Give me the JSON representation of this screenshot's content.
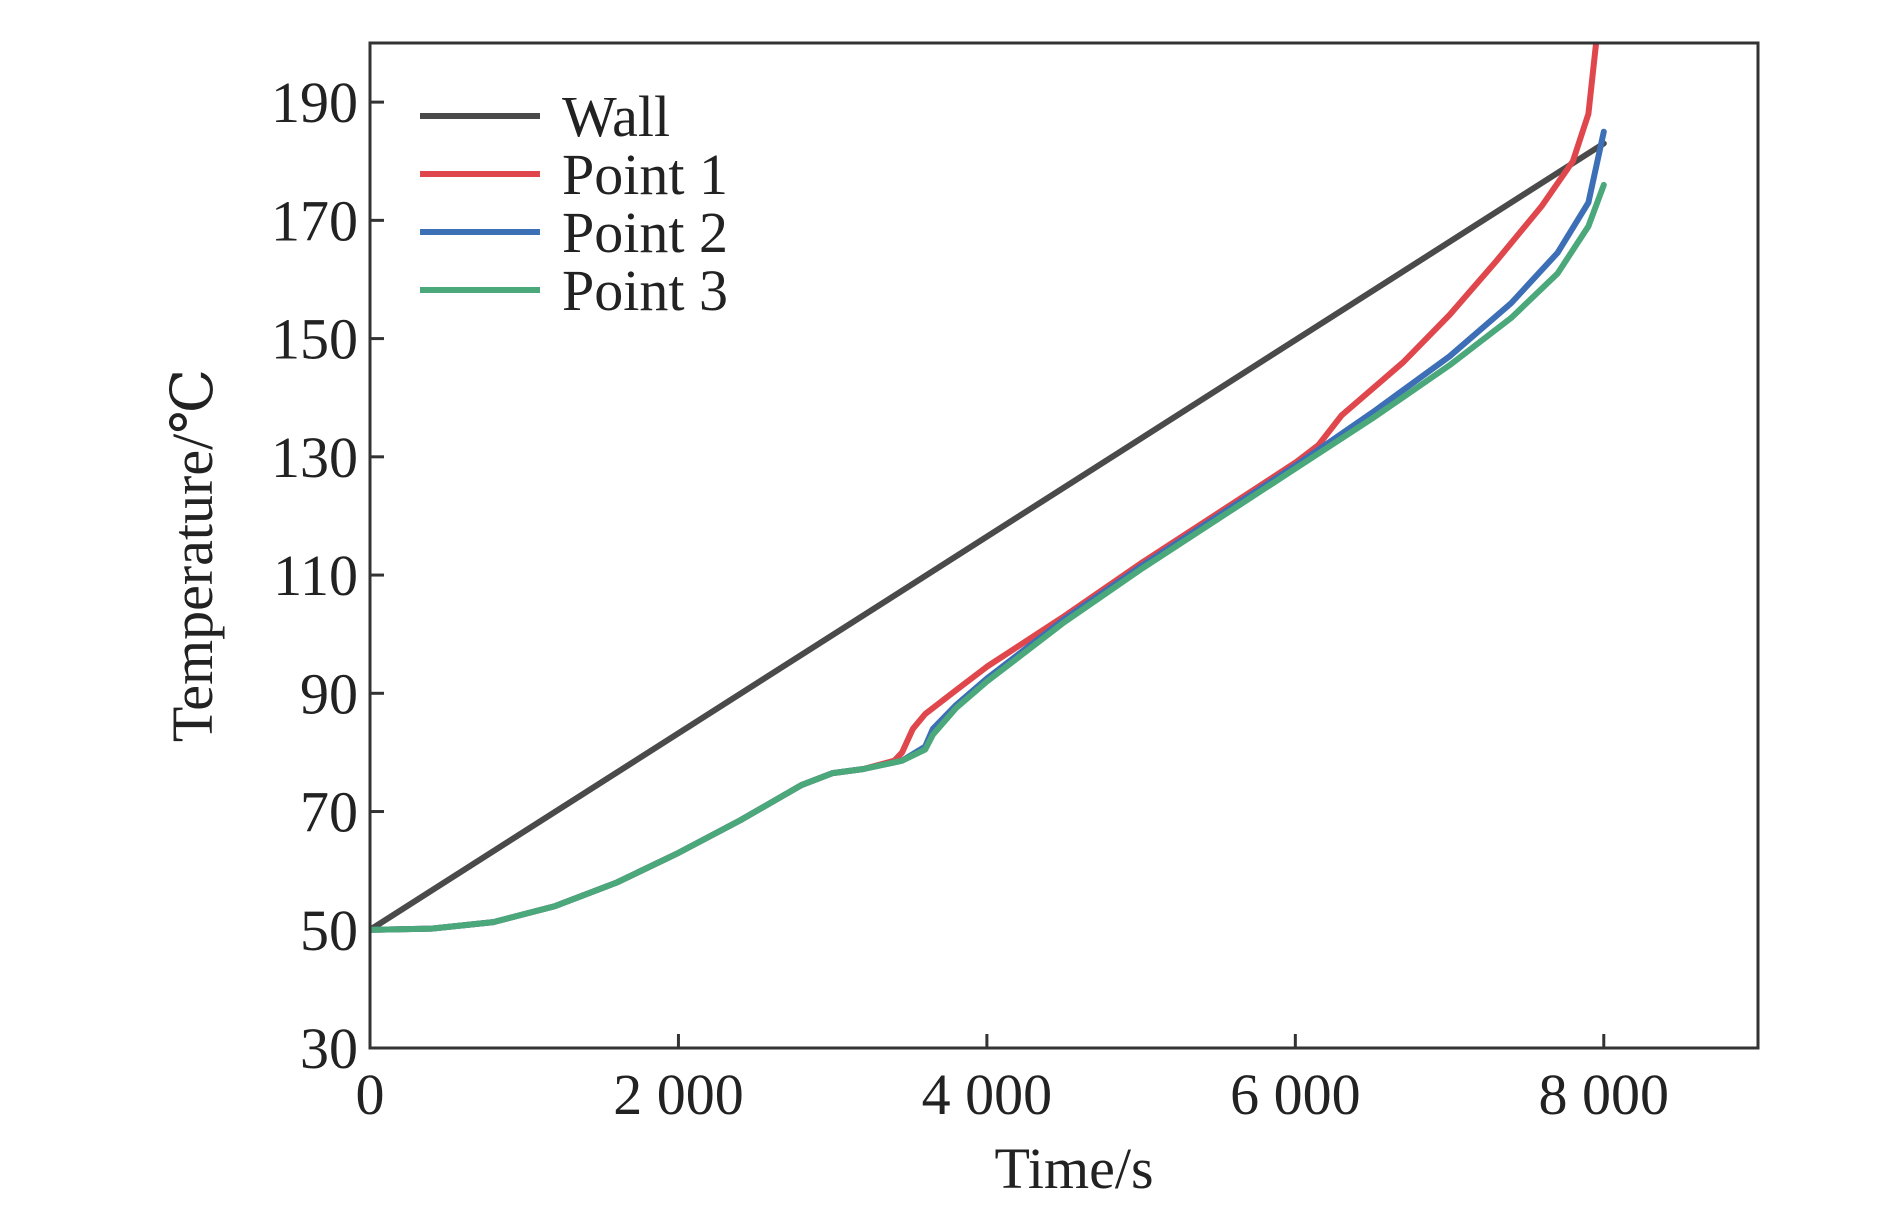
{
  "chart_data": {
    "type": "line",
    "xlabel": "Time/s",
    "ylabel": "Temperature/℃",
    "xlim": [
      0,
      9000
    ],
    "ylim": [
      30,
      200
    ],
    "x_ticks": [
      0,
      2000,
      4000,
      6000,
      8000
    ],
    "x_tick_labels": [
      "0",
      "2 000",
      "4 000",
      "6 000",
      "8 000"
    ],
    "y_ticks": [
      30,
      50,
      70,
      90,
      110,
      130,
      150,
      170,
      190
    ],
    "y_tick_labels": [
      "30",
      "50",
      "70",
      "90",
      "110",
      "130",
      "150",
      "170",
      "190"
    ],
    "grid": false,
    "legend_position": "top-left",
    "series": [
      {
        "name": "Wall",
        "color": "#4a4a4a",
        "points": [
          [
            0,
            50
          ],
          [
            8000,
            183
          ]
        ]
      },
      {
        "name": "Point 1",
        "color": "#e0474c",
        "points": [
          [
            0,
            50
          ],
          [
            400,
            50.2
          ],
          [
            800,
            51.3
          ],
          [
            1200,
            54
          ],
          [
            1600,
            58
          ],
          [
            2000,
            63
          ],
          [
            2400,
            68.5
          ],
          [
            2800,
            74.5
          ],
          [
            3000,
            76.5
          ],
          [
            3200,
            77.2
          ],
          [
            3400,
            78.6
          ],
          [
            3450,
            80
          ],
          [
            3520,
            84
          ],
          [
            3600,
            86.5
          ],
          [
            3800,
            90.5
          ],
          [
            4000,
            94.5
          ],
          [
            4500,
            103
          ],
          [
            5000,
            112
          ],
          [
            5500,
            120.5
          ],
          [
            6000,
            129
          ],
          [
            6150,
            132
          ],
          [
            6300,
            137
          ],
          [
            6700,
            146
          ],
          [
            7000,
            154
          ],
          [
            7300,
            163
          ],
          [
            7600,
            172.5
          ],
          [
            7800,
            180
          ],
          [
            7900,
            188
          ],
          [
            7950,
            200
          ]
        ]
      },
      {
        "name": "Point 2",
        "color": "#3d6fb6",
        "points": [
          [
            0,
            50
          ],
          [
            400,
            50.2
          ],
          [
            800,
            51.3
          ],
          [
            1200,
            54
          ],
          [
            1600,
            58
          ],
          [
            2000,
            63
          ],
          [
            2400,
            68.5
          ],
          [
            2800,
            74.5
          ],
          [
            3000,
            76.5
          ],
          [
            3200,
            77.2
          ],
          [
            3450,
            78.6
          ],
          [
            3600,
            81
          ],
          [
            3650,
            84
          ],
          [
            3800,
            88
          ],
          [
            4000,
            92.5
          ],
          [
            4500,
            102.5
          ],
          [
            5000,
            111.5
          ],
          [
            5500,
            120
          ],
          [
            6000,
            128.5
          ],
          [
            6500,
            137.5
          ],
          [
            7000,
            147
          ],
          [
            7400,
            156
          ],
          [
            7700,
            164.5
          ],
          [
            7900,
            173
          ],
          [
            8000,
            185
          ]
        ]
      },
      {
        "name": "Point 3",
        "color": "#4aa87a",
        "points": [
          [
            0,
            50
          ],
          [
            400,
            50.2
          ],
          [
            800,
            51.3
          ],
          [
            1200,
            54
          ],
          [
            1600,
            58
          ],
          [
            2000,
            63
          ],
          [
            2400,
            68.5
          ],
          [
            2800,
            74.5
          ],
          [
            3000,
            76.5
          ],
          [
            3200,
            77.2
          ],
          [
            3450,
            78.6
          ],
          [
            3600,
            80.5
          ],
          [
            3650,
            83
          ],
          [
            3800,
            87.5
          ],
          [
            4000,
            92
          ],
          [
            4500,
            102
          ],
          [
            5000,
            111
          ],
          [
            5500,
            119.5
          ],
          [
            6000,
            128
          ],
          [
            6500,
            136.5
          ],
          [
            7000,
            145.5
          ],
          [
            7400,
            153.5
          ],
          [
            7700,
            161
          ],
          [
            7900,
            169
          ],
          [
            8000,
            176
          ]
        ]
      }
    ]
  }
}
